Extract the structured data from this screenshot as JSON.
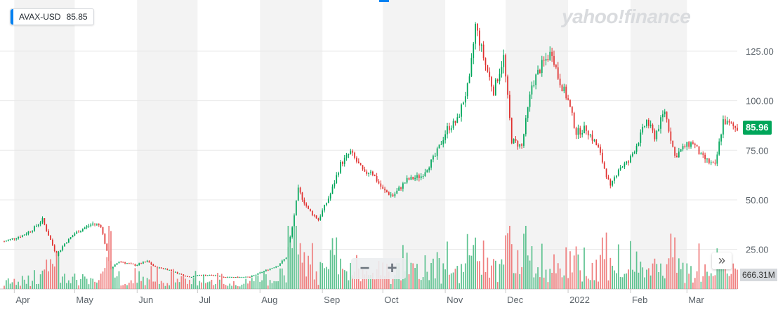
{
  "ticker": {
    "symbol": "AVAX-USD",
    "price": "85.85"
  },
  "watermark": "yahoo!finance",
  "last_price_label": "85.96",
  "volume_label": "666.31M",
  "zoom": {
    "minus": "−",
    "plus": "+"
  },
  "scroll_glyph": "»",
  "colors": {
    "up": "#00a65a",
    "down": "#e0302e",
    "volume_up": "#5fc391",
    "volume_down": "#ef7f7f",
    "band": "#f3f3f3",
    "grid": "#e8e8e8",
    "text": "#5b636a",
    "accent": "#0081f2"
  },
  "chart_data": {
    "type": "candlestick",
    "title": "",
    "xlabel": "",
    "ylabel": "",
    "ylim": [
      10,
      148
    ],
    "y_ticks": [
      25,
      50,
      75,
      100,
      125
    ],
    "y_tick_labels": [
      "25.00",
      "50.00",
      "75.00",
      "100.00",
      "125.00"
    ],
    "x_tick_labels": [
      "Apr",
      "May",
      "Jun",
      "Jul",
      "Aug",
      "Sep",
      "Oct",
      "Nov",
      "Dec",
      "2022",
      "Feb",
      "Mar"
    ],
    "x_tick_dates": [
      "2021-04-01",
      "2021-05-01",
      "2021-06-01",
      "2021-07-01",
      "2021-08-01",
      "2021-09-01",
      "2021-10-01",
      "2021-11-01",
      "2021-12-01",
      "2022-01-01",
      "2022-02-01",
      "2022-03-01"
    ],
    "x_range": [
      "2021-03-27",
      "2022-03-26"
    ],
    "close_anchor_dates": [
      "2021-03-27",
      "2021-04-05",
      "2021-04-10",
      "2021-04-15",
      "2021-04-22",
      "2021-04-26",
      "2021-05-01",
      "2021-05-06",
      "2021-05-10",
      "2021-05-14",
      "2021-05-19",
      "2021-05-23",
      "2021-05-31",
      "2021-06-06",
      "2021-06-10",
      "2021-06-16",
      "2021-06-21",
      "2021-06-27",
      "2021-07-01",
      "2021-07-08",
      "2021-07-15",
      "2021-07-20",
      "2021-07-27",
      "2021-08-03",
      "2021-08-10",
      "2021-08-14",
      "2021-08-17",
      "2021-08-20",
      "2021-08-25",
      "2021-08-30",
      "2021-09-05",
      "2021-09-10",
      "2021-09-15",
      "2021-09-22",
      "2021-09-25",
      "2021-10-01",
      "2021-10-06",
      "2021-10-13",
      "2021-10-20",
      "2021-10-27",
      "2021-11-02",
      "2021-11-07",
      "2021-11-13",
      "2021-11-16",
      "2021-11-21",
      "2021-11-25",
      "2021-11-30",
      "2021-12-04",
      "2021-12-09",
      "2021-12-14",
      "2021-12-19",
      "2021-12-24",
      "2021-12-27",
      "2022-01-01",
      "2022-01-05",
      "2022-01-10",
      "2022-01-16",
      "2022-01-22",
      "2022-01-26",
      "2022-01-31",
      "2022-02-05",
      "2022-02-09",
      "2022-02-13",
      "2022-02-18",
      "2022-02-23",
      "2022-02-28",
      "2022-03-04",
      "2022-03-08",
      "2022-03-12",
      "2022-03-15",
      "2022-03-19",
      "2022-03-22",
      "2022-03-26"
    ],
    "close_anchor_values": [
      29,
      32,
      35,
      40,
      22,
      28,
      33,
      36,
      38,
      37,
      15,
      19,
      17,
      19,
      16,
      15,
      13,
      11,
      12,
      12,
      11,
      11,
      11,
      14,
      17,
      21,
      36,
      55,
      45,
      40,
      53,
      68,
      74,
      63,
      65,
      55,
      52,
      60,
      62,
      72,
      86,
      90,
      110,
      138,
      118,
      105,
      122,
      80,
      77,
      108,
      118,
      125,
      112,
      100,
      84,
      86,
      76,
      56,
      66,
      69,
      80,
      90,
      82,
      95,
      72,
      77,
      79,
      72,
      69,
      67,
      90,
      88,
      86
    ],
    "volume_level_range_millions": [
      0,
      1000
    ]
  }
}
